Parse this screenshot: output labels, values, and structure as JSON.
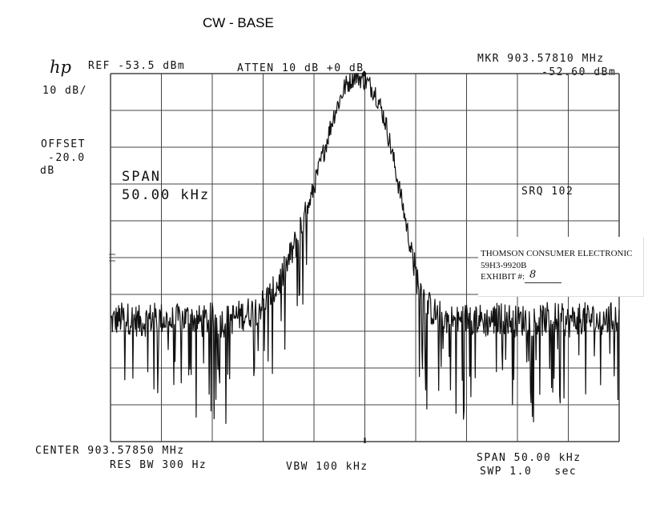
{
  "title": "CW - BASE",
  "header": {
    "logo": "hp",
    "ref_level": "REF -53.5 dBm",
    "atten": "ATTEN 10 dB +0 dB",
    "marker_freq": "MKR 903.57810 MHz",
    "marker_level": "-52.60 dBm"
  },
  "side": {
    "scale": "10 dB/",
    "offset_label": "OFFSET",
    "offset_value": "-20.0",
    "offset_unit": "dB"
  },
  "overlay": {
    "span_label": "SPAN",
    "span_value": "50.00 kHz",
    "srq": "SRQ 102"
  },
  "footer": {
    "center": "CENTER 903.57850 MHz",
    "res_bw": "RES BW 300 Hz",
    "vbw": "VBW 100 kHz",
    "span": "SPAN 50.00 kHz",
    "sweep": "SWP 1.0   sec"
  },
  "exhibit_label": {
    "line1": "THOMSON CONSUMER ELECTRONIC",
    "line2": "59H3-9920B",
    "line3": "EXHIBIT #:",
    "exhibit_number": "8"
  },
  "chart_data": {
    "type": "line",
    "xlabel": "",
    "ylabel": "",
    "x_unit": "kHz offset from center",
    "x_range": [
      -25,
      25
    ],
    "y_range": [
      -153.5,
      -53.5
    ],
    "grid": true,
    "series": [
      {
        "x": [
          -25,
          -24,
          -23,
          -22,
          -21,
          -20,
          -19,
          -18,
          -17,
          -16,
          -15,
          -14,
          -13,
          -12,
          -11,
          -10,
          -9,
          -8,
          -7,
          -6,
          -5,
          -4,
          -3,
          -2,
          -1,
          0,
          1,
          2,
          3,
          4,
          5,
          6,
          7,
          8,
          9,
          10,
          11,
          12,
          13,
          14,
          15,
          16,
          17,
          18,
          19,
          20,
          21,
          22,
          23,
          24,
          25
        ],
        "y": [
          -121,
          -120,
          -120,
          -121,
          -120,
          -120,
          -121,
          -120,
          -120,
          -121,
          -120,
          -121,
          -120,
          -119,
          -118,
          -116,
          -113,
          -108,
          -101,
          -94,
          -84,
          -74,
          -64,
          -57,
          -53.5,
          -55,
          -58,
          -66,
          -79,
          -93,
          -108,
          -116,
          -119,
          -120,
          -121,
          -120,
          -120,
          -121,
          -120,
          -120,
          -121,
          -120,
          -121,
          -120,
          -120,
          -121,
          -120,
          -120,
          -121,
          -120,
          -120
        ]
      }
    ]
  },
  "colors": {
    "trace": "#111111",
    "grid": "#444444",
    "background": "#ffffff"
  }
}
